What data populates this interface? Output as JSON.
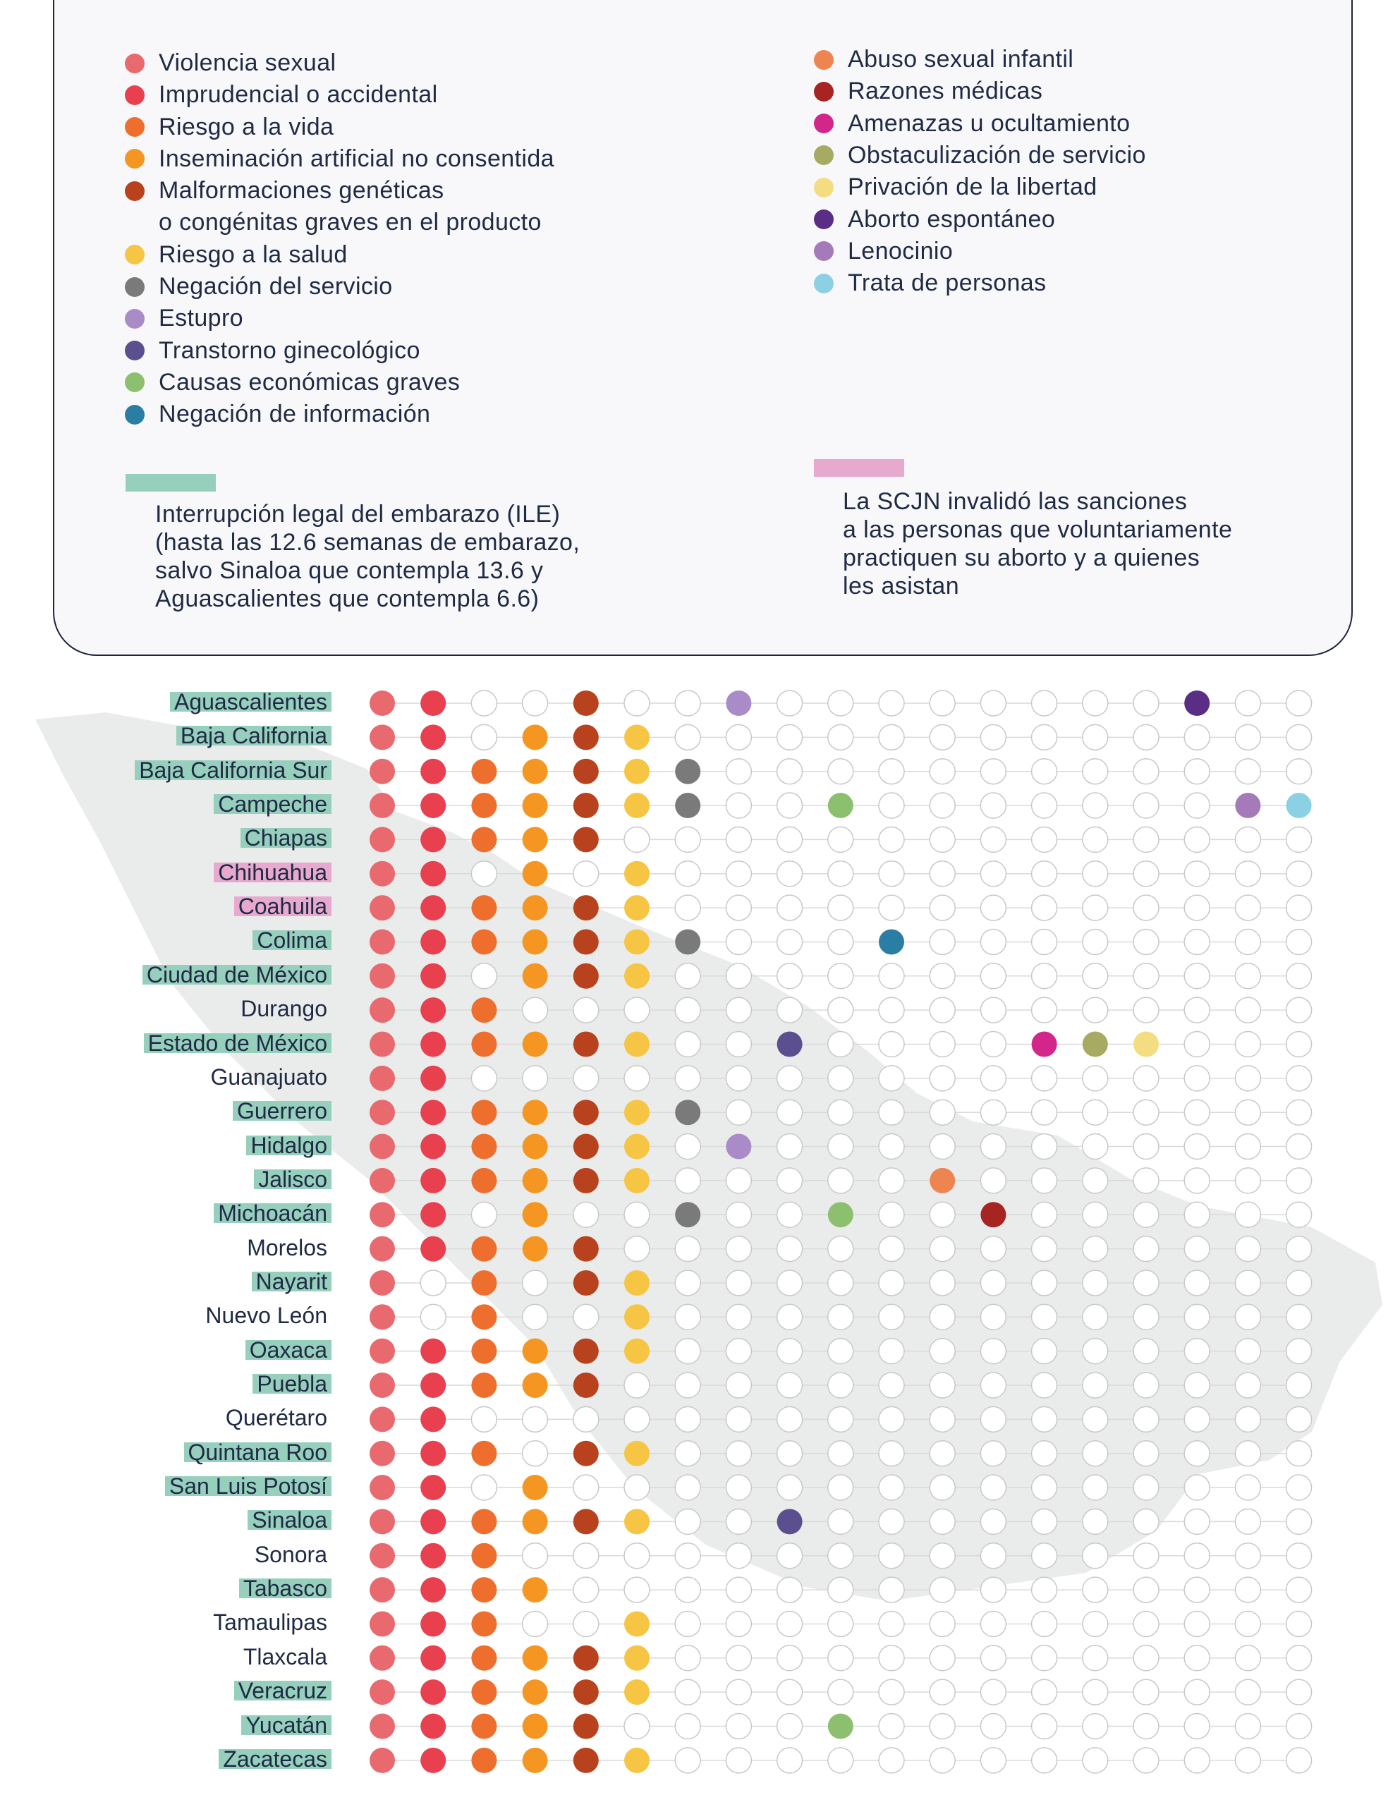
{
  "legend": {
    "left": [
      {
        "label": "Violencia sexual",
        "color": "#e96a6e"
      },
      {
        "label": "Imprudencial o accidental",
        "color": "#e8404e"
      },
      {
        "label": "Riesgo a la vida",
        "color": "#ee6e2e"
      },
      {
        "label": "Inseminación artificial no consentida",
        "color": "#f59623"
      },
      {
        "label": "Malformaciones genéticas",
        "label_line2": "o congénitas graves en el producto",
        "color": "#b8421d"
      },
      {
        "label": "Riesgo a la salud",
        "color": "#f7c544"
      },
      {
        "label": "Negación del servicio",
        "color": "#7a7a7a"
      },
      {
        "label": "Estupro",
        "color": "#a88bc7"
      },
      {
        "label": "Transtorno ginecológico",
        "color": "#5b4f8f"
      },
      {
        "label": "Causas económicas graves",
        "color": "#8cc06e"
      },
      {
        "label": "Negación de información",
        "color": "#2b7ea3"
      }
    ],
    "right": [
      {
        "label": "Abuso sexual infantil",
        "color": "#ee8550"
      },
      {
        "label": "Razones médicas",
        "color": "#a62421"
      },
      {
        "label": "Amenazas u ocultamiento",
        "color": "#d2268a"
      },
      {
        "label": "Obstaculización de servicio",
        "color": "#a7aa62"
      },
      {
        "label": "Privación de la libertad",
        "color": "#f3dd80"
      },
      {
        "label": "Aborto espontáneo",
        "color": "#5a2e85"
      },
      {
        "label": "Lenocinio",
        "color": "#a47ab8"
      },
      {
        "label": "Trata de personas",
        "color": "#8cd0e3"
      }
    ],
    "notes": [
      {
        "color": "#97cfbd",
        "lines": [
          "Interrupción legal del embarazo (ILE)",
          "(hasta las 12.6 semanas de embarazo,",
          "salvo Sinaloa que contempla 13.6 y",
          "Aguascalientes que contempla 6.6)"
        ]
      },
      {
        "color": "#e8a9cf",
        "lines": [
          "La SCJN invalidó las sanciones",
          "a las personas que voluntariamente",
          "practiquen su aborto y a quienes",
          "les asistan"
        ]
      }
    ]
  },
  "chart_data": {
    "type": "table",
    "columns": [
      "Violencia sexual",
      "Imprudencial o accidental",
      "Riesgo a la vida",
      "Inseminación artificial no consentida",
      "Malformaciones genéticas o congénitas graves en el producto",
      "Riesgo a la salud",
      "Negación del servicio",
      "Estupro",
      "Transtorno ginecológico",
      "Causas económicas graves",
      "Negación de información",
      "Abuso sexual infantil",
      "Razones médicas",
      "Amenazas u ocultamiento",
      "Obstaculización de servicio",
      "Privación de la libertad",
      "Aborto espontáneo",
      "Lenocinio",
      "Trata de personas"
    ],
    "column_colors": [
      "#e96a6e",
      "#e8404e",
      "#ee6e2e",
      "#f59623",
      "#b8421d",
      "#f7c544",
      "#7a7a7a",
      "#a88bc7",
      "#5b4f8f",
      "#8cc06e",
      "#2b7ea3",
      "#ee8550",
      "#a62421",
      "#d2268a",
      "#a7aa62",
      "#f3dd80",
      "#5a2e85",
      "#a47ab8",
      "#8cd0e3"
    ],
    "highlight_colors": {
      "ILE": "#97cfbd",
      "SCJN": "#e8a9cf"
    },
    "rows": [
      {
        "state": "Aguascalientes",
        "highlight": "ILE",
        "values": [
          1,
          1,
          0,
          0,
          1,
          0,
          0,
          1,
          0,
          0,
          0,
          0,
          0,
          0,
          0,
          0,
          1,
          0,
          0
        ]
      },
      {
        "state": "Baja California",
        "highlight": "ILE",
        "values": [
          1,
          1,
          0,
          1,
          1,
          1,
          0,
          0,
          0,
          0,
          0,
          0,
          0,
          0,
          0,
          0,
          0,
          0,
          0
        ]
      },
      {
        "state": "Baja California Sur",
        "highlight": "ILE",
        "values": [
          1,
          1,
          1,
          1,
          1,
          1,
          1,
          0,
          0,
          0,
          0,
          0,
          0,
          0,
          0,
          0,
          0,
          0,
          0
        ]
      },
      {
        "state": "Campeche",
        "highlight": "ILE",
        "values": [
          1,
          1,
          1,
          1,
          1,
          1,
          1,
          0,
          0,
          1,
          0,
          0,
          0,
          0,
          0,
          0,
          0,
          1,
          1
        ]
      },
      {
        "state": "Chiapas",
        "highlight": "ILE",
        "values": [
          1,
          1,
          1,
          1,
          1,
          0,
          0,
          0,
          0,
          0,
          0,
          0,
          0,
          0,
          0,
          0,
          0,
          0,
          0
        ]
      },
      {
        "state": "Chihuahua",
        "highlight": "SCJN",
        "values": [
          1,
          1,
          0,
          1,
          0,
          1,
          0,
          0,
          0,
          0,
          0,
          0,
          0,
          0,
          0,
          0,
          0,
          0,
          0
        ]
      },
      {
        "state": "Coahuila",
        "highlight": "SCJN",
        "values": [
          1,
          1,
          1,
          1,
          1,
          1,
          0,
          0,
          0,
          0,
          0,
          0,
          0,
          0,
          0,
          0,
          0,
          0,
          0
        ]
      },
      {
        "state": "Colima",
        "highlight": "ILE",
        "values": [
          1,
          1,
          1,
          1,
          1,
          1,
          1,
          0,
          0,
          0,
          1,
          0,
          0,
          0,
          0,
          0,
          0,
          0,
          0
        ]
      },
      {
        "state": "Ciudad de México",
        "highlight": "ILE",
        "values": [
          1,
          1,
          0,
          1,
          1,
          1,
          0,
          0,
          0,
          0,
          0,
          0,
          0,
          0,
          0,
          0,
          0,
          0,
          0
        ]
      },
      {
        "state": "Durango",
        "highlight": "",
        "values": [
          1,
          1,
          1,
          0,
          0,
          0,
          0,
          0,
          0,
          0,
          0,
          0,
          0,
          0,
          0,
          0,
          0,
          0,
          0
        ]
      },
      {
        "state": "Estado de México",
        "highlight": "ILE",
        "values": [
          1,
          1,
          1,
          1,
          1,
          1,
          0,
          0,
          1,
          0,
          0,
          0,
          0,
          1,
          1,
          1,
          0,
          0,
          0
        ]
      },
      {
        "state": "Guanajuato",
        "highlight": "",
        "values": [
          1,
          1,
          0,
          0,
          0,
          0,
          0,
          0,
          0,
          0,
          0,
          0,
          0,
          0,
          0,
          0,
          0,
          0,
          0
        ]
      },
      {
        "state": "Guerrero",
        "highlight": "ILE",
        "values": [
          1,
          1,
          1,
          1,
          1,
          1,
          1,
          0,
          0,
          0,
          0,
          0,
          0,
          0,
          0,
          0,
          0,
          0,
          0
        ]
      },
      {
        "state": "Hidalgo",
        "highlight": "ILE",
        "values": [
          1,
          1,
          1,
          1,
          1,
          1,
          0,
          1,
          0,
          0,
          0,
          0,
          0,
          0,
          0,
          0,
          0,
          0,
          0
        ]
      },
      {
        "state": "Jalisco",
        "highlight": "ILE",
        "values": [
          1,
          1,
          1,
          1,
          1,
          1,
          0,
          0,
          0,
          0,
          0,
          1,
          0,
          0,
          0,
          0,
          0,
          0,
          0
        ]
      },
      {
        "state": "Michoacán",
        "highlight": "ILE",
        "values": [
          1,
          1,
          0,
          1,
          0,
          0,
          1,
          0,
          0,
          1,
          0,
          0,
          1,
          0,
          0,
          0,
          0,
          0,
          0
        ]
      },
      {
        "state": "Morelos",
        "highlight": "",
        "values": [
          1,
          1,
          1,
          1,
          1,
          0,
          0,
          0,
          0,
          0,
          0,
          0,
          0,
          0,
          0,
          0,
          0,
          0,
          0
        ]
      },
      {
        "state": "Nayarit",
        "highlight": "ILE",
        "values": [
          1,
          0,
          1,
          0,
          1,
          1,
          0,
          0,
          0,
          0,
          0,
          0,
          0,
          0,
          0,
          0,
          0,
          0,
          0
        ]
      },
      {
        "state": "Nuevo León",
        "highlight": "",
        "values": [
          1,
          0,
          1,
          0,
          0,
          1,
          0,
          0,
          0,
          0,
          0,
          0,
          0,
          0,
          0,
          0,
          0,
          0,
          0
        ]
      },
      {
        "state": "Oaxaca",
        "highlight": "ILE",
        "values": [
          1,
          1,
          1,
          1,
          1,
          1,
          0,
          0,
          0,
          0,
          0,
          0,
          0,
          0,
          0,
          0,
          0,
          0,
          0
        ]
      },
      {
        "state": "Puebla",
        "highlight": "ILE",
        "values": [
          1,
          1,
          1,
          1,
          1,
          0,
          0,
          0,
          0,
          0,
          0,
          0,
          0,
          0,
          0,
          0,
          0,
          0,
          0
        ]
      },
      {
        "state": "Querétaro",
        "highlight": "",
        "values": [
          1,
          1,
          0,
          0,
          0,
          0,
          0,
          0,
          0,
          0,
          0,
          0,
          0,
          0,
          0,
          0,
          0,
          0,
          0
        ]
      },
      {
        "state": "Quintana Roo",
        "highlight": "ILE",
        "values": [
          1,
          1,
          1,
          0,
          1,
          1,
          0,
          0,
          0,
          0,
          0,
          0,
          0,
          0,
          0,
          0,
          0,
          0,
          0
        ]
      },
      {
        "state": "San Luis Potosí",
        "highlight": "ILE",
        "values": [
          1,
          1,
          0,
          1,
          0,
          0,
          0,
          0,
          0,
          0,
          0,
          0,
          0,
          0,
          0,
          0,
          0,
          0,
          0
        ]
      },
      {
        "state": "Sinaloa",
        "highlight": "ILE",
        "values": [
          1,
          1,
          1,
          1,
          1,
          1,
          0,
          0,
          1,
          0,
          0,
          0,
          0,
          0,
          0,
          0,
          0,
          0,
          0
        ]
      },
      {
        "state": "Sonora",
        "highlight": "",
        "values": [
          1,
          1,
          1,
          0,
          0,
          0,
          0,
          0,
          0,
          0,
          0,
          0,
          0,
          0,
          0,
          0,
          0,
          0,
          0
        ]
      },
      {
        "state": "Tabasco",
        "highlight": "ILE",
        "values": [
          1,
          1,
          1,
          1,
          0,
          0,
          0,
          0,
          0,
          0,
          0,
          0,
          0,
          0,
          0,
          0,
          0,
          0,
          0
        ]
      },
      {
        "state": "Tamaulipas",
        "highlight": "",
        "values": [
          1,
          1,
          1,
          0,
          0,
          1,
          0,
          0,
          0,
          0,
          0,
          0,
          0,
          0,
          0,
          0,
          0,
          0,
          0
        ]
      },
      {
        "state": "Tlaxcala",
        "highlight": "",
        "values": [
          1,
          1,
          1,
          1,
          1,
          1,
          0,
          0,
          0,
          0,
          0,
          0,
          0,
          0,
          0,
          0,
          0,
          0,
          0
        ]
      },
      {
        "state": "Veracruz",
        "highlight": "ILE",
        "values": [
          1,
          1,
          1,
          1,
          1,
          1,
          0,
          0,
          0,
          0,
          0,
          0,
          0,
          0,
          0,
          0,
          0,
          0,
          0
        ]
      },
      {
        "state": "Yucatán",
        "highlight": "ILE",
        "values": [
          1,
          1,
          1,
          1,
          1,
          0,
          0,
          0,
          0,
          1,
          0,
          0,
          0,
          0,
          0,
          0,
          0,
          0,
          0
        ]
      },
      {
        "state": "Zacatecas",
        "highlight": "ILE",
        "values": [
          1,
          1,
          1,
          1,
          1,
          1,
          0,
          0,
          0,
          0,
          0,
          0,
          0,
          0,
          0,
          0,
          0,
          0,
          0
        ]
      }
    ]
  }
}
